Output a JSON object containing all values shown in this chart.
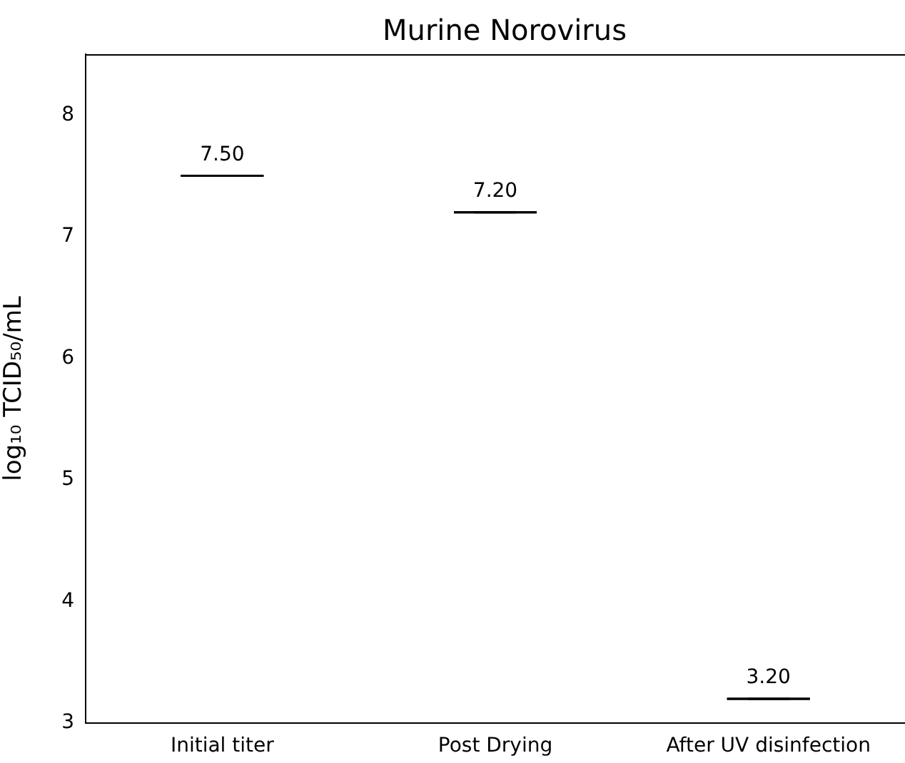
{
  "chart_data": {
    "type": "box",
    "title": "Murine Norovirus",
    "ylabel": "log₁₀ TCID₅₀/mL",
    "categories": [
      "Initial titer",
      "Post Drying",
      "After UV disinfection"
    ],
    "boxes": [
      {
        "low": 7.5,
        "q1": 7.5,
        "median": 7.5,
        "q3": 7.5,
        "high": 7.5
      },
      {
        "low": 7.2,
        "q1": 7.2,
        "median": 7.2,
        "q3": 7.2,
        "high": 7.2
      },
      {
        "low": 3.2,
        "q1": 3.2,
        "median": 3.2,
        "q3": 3.2,
        "high": 3.2
      }
    ],
    "value_labels": [
      "7.50",
      "7.20",
      "3.20"
    ],
    "color": "#000000",
    "ylim": [
      3,
      8.5
    ],
    "yticks": [
      3,
      4,
      5,
      6,
      7,
      8
    ],
    "grid": false,
    "legend": false
  }
}
